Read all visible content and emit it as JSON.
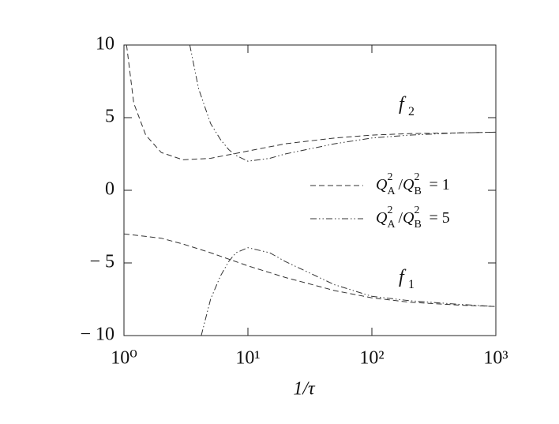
{
  "chart_data": {
    "type": "line",
    "x_label": "1/τ",
    "xscale": "log",
    "xlim": [
      1,
      1000
    ],
    "xticks": [
      {
        "value": 1,
        "label": "10⁰"
      },
      {
        "value": 10,
        "label": "10¹"
      },
      {
        "value": 100,
        "label": "10²"
      },
      {
        "value": 1000,
        "label": "10³"
      }
    ],
    "ylim": [
      -10,
      10
    ],
    "yticks": [
      {
        "value": 10,
        "label": "10"
      },
      {
        "value": 5,
        "label": "5"
      },
      {
        "value": 0,
        "label": "0"
      },
      {
        "value": -5,
        "label": "− 5"
      },
      {
        "value": -10,
        "label": "− 10"
      }
    ],
    "series": [
      {
        "name": [
          "Q",
          "2",
          "A",
          "/",
          "Q",
          "2",
          "B",
          " = 1"
        ],
        "color": "#333333",
        "dash": "7 4",
        "curves": [
          {
            "x": [
              1.05,
              1.2,
              1.5,
              2,
              3,
              5,
              10,
              20,
              50,
              100,
              200,
              500,
              1000
            ],
            "values": [
              10,
              6,
              3.8,
              2.6,
              2.1,
              2.2,
              2.7,
              3.2,
              3.6,
              3.8,
              3.9,
              3.95,
              4.0
            ]
          },
          {
            "x": [
              1,
              2,
              3,
              5,
              10,
              20,
              50,
              100,
              200,
              500,
              1000
            ],
            "values": [
              -3.0,
              -3.3,
              -3.7,
              -4.3,
              -5.2,
              -6.0,
              -6.9,
              -7.4,
              -7.7,
              -7.9,
              -8.0
            ]
          }
        ]
      },
      {
        "name": [
          "Q",
          "2",
          "A",
          "/",
          "Q",
          "2",
          "B",
          " = 5"
        ],
        "color": "#333333",
        "dash": "8 3 1.5 3 1.5 3",
        "curves": [
          {
            "x": [
              3.4,
              4,
              5,
              6,
              7,
              8,
              10,
              15,
              20,
              50,
              100,
              200,
              500,
              1000
            ],
            "values": [
              10,
              7,
              4.6,
              3.5,
              2.8,
              2.4,
              2.0,
              2.2,
              2.5,
              3.2,
              3.6,
              3.8,
              3.95,
              4.0
            ]
          },
          {
            "x": [
              4.2,
              5,
              6,
              7,
              8,
              10,
              15,
              20,
              50,
              100,
              200,
              500,
              1000
            ],
            "values": [
              -10,
              -7.5,
              -5.9,
              -4.9,
              -4.3,
              -3.95,
              -4.3,
              -4.9,
              -6.5,
              -7.3,
              -7.6,
              -7.85,
              -8.0
            ]
          }
        ]
      }
    ],
    "annotations": [
      {
        "text": [
          "f",
          "2"
        ]
      },
      {
        "text": [
          "f",
          "1"
        ]
      }
    ]
  }
}
